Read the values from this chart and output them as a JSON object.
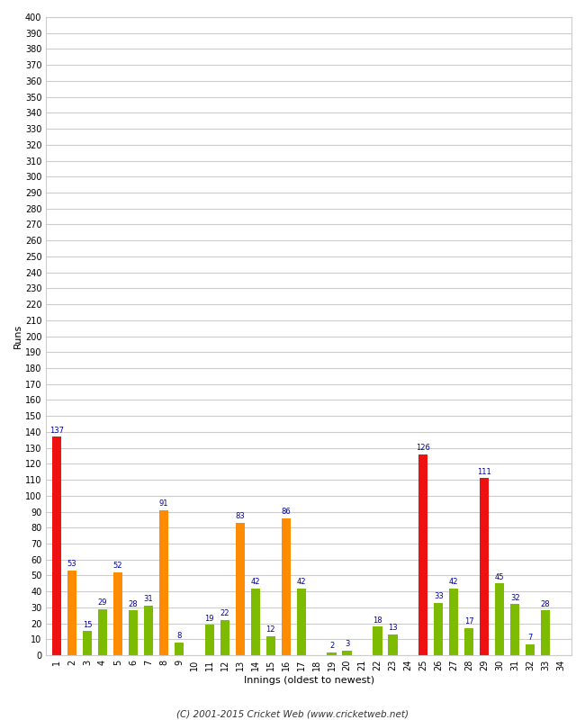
{
  "xlabel": "Innings (oldest to newest)",
  "ylabel": "Runs",
  "footer": "(C) 2001-2015 Cricket Web (www.cricketweb.net)",
  "ylim": [
    0,
    400
  ],
  "innings": [
    1,
    2,
    3,
    4,
    5,
    6,
    7,
    8,
    9,
    10,
    11,
    12,
    13,
    14,
    15,
    16,
    17,
    18,
    19,
    20,
    21,
    22,
    23,
    24,
    25,
    26,
    27,
    28,
    29,
    30,
    31,
    32,
    33,
    34
  ],
  "values": [
    137,
    53,
    15,
    29,
    52,
    28,
    31,
    91,
    8,
    0,
    19,
    22,
    83,
    42,
    12,
    86,
    42,
    0,
    2,
    3,
    0,
    18,
    13,
    0,
    126,
    33,
    42,
    17,
    111,
    45,
    32,
    7,
    28,
    0
  ],
  "colors": [
    "#ee1111",
    "#ff8c00",
    "#7cbb00",
    "#7cbb00",
    "#ff8c00",
    "#7cbb00",
    "#7cbb00",
    "#ff8c00",
    "#7cbb00",
    "#7cbb00",
    "#7cbb00",
    "#7cbb00",
    "#ff8c00",
    "#7cbb00",
    "#7cbb00",
    "#ff8c00",
    "#7cbb00",
    "#7cbb00",
    "#7cbb00",
    "#7cbb00",
    "#7cbb00",
    "#7cbb00",
    "#7cbb00",
    "#7cbb00",
    "#ee1111",
    "#7cbb00",
    "#7cbb00",
    "#7cbb00",
    "#ee1111",
    "#7cbb00",
    "#7cbb00",
    "#7cbb00",
    "#7cbb00",
    "#7cbb00"
  ],
  "label_color": "#000099",
  "background_color": "#ffffff",
  "grid_color": "#cccccc",
  "bar_width": 0.6
}
